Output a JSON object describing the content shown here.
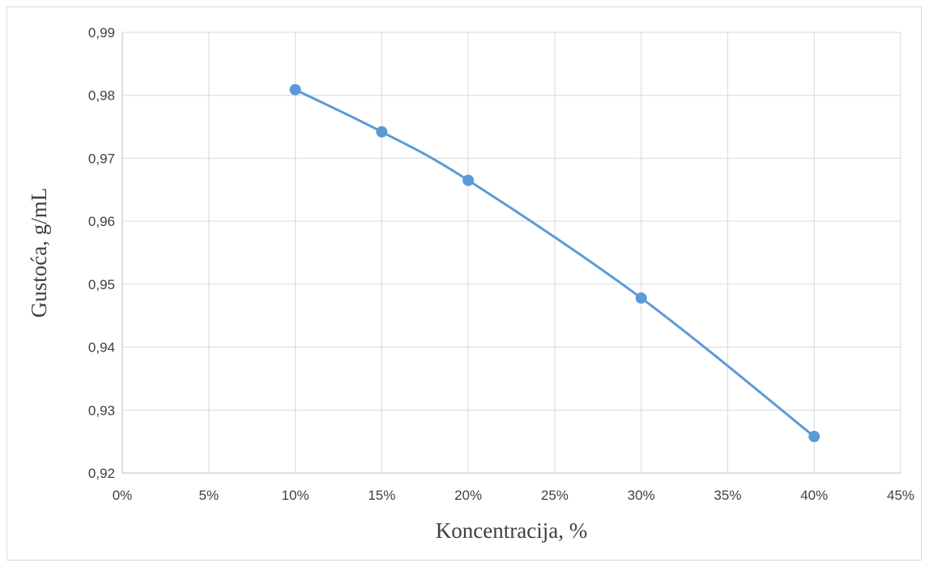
{
  "chart_data": {
    "type": "scatter",
    "title": "",
    "xlabel": "Koncentracija, %",
    "ylabel": "Gustoća, g/mL",
    "xlim": [
      0,
      45
    ],
    "ylim": [
      0.92,
      0.99
    ],
    "x_ticks": [
      "0%",
      "5%",
      "10%",
      "15%",
      "20%",
      "25%",
      "30%",
      "35%",
      "40%",
      "45%"
    ],
    "y_ticks": [
      "0,92",
      "0,93",
      "0,94",
      "0,95",
      "0,96",
      "0,97",
      "0,98",
      "0,99"
    ],
    "x_tick_values": [
      0,
      5,
      10,
      15,
      20,
      25,
      30,
      35,
      40,
      45
    ],
    "y_tick_values": [
      0.92,
      0.93,
      0.94,
      0.95,
      0.96,
      0.97,
      0.98,
      0.99
    ],
    "grid": true,
    "smooth_line": true,
    "series": [
      {
        "x": [
          10,
          15,
          20,
          30,
          40
        ],
        "y": [
          0.9809,
          0.9742,
          0.9665,
          0.9478,
          0.9258
        ],
        "color": "#5b9bd5"
      }
    ]
  }
}
